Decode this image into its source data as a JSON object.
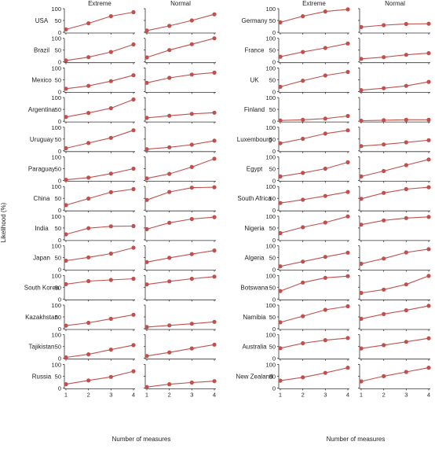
{
  "chart_data": {
    "type": "line",
    "ylabel": "Likelihood (%)",
    "xlabel": "Number of measures",
    "x": [
      1,
      2,
      3,
      4
    ],
    "ylim": [
      0,
      100
    ],
    "yticks": [
      0,
      50,
      100
    ],
    "xticks": [
      1,
      2,
      3,
      4
    ],
    "column_headers": [
      "Extreme",
      "Normal"
    ],
    "line_color": "#c0504d",
    "panels": [
      {
        "country": "USA",
        "extreme": [
          12,
          38,
          68,
          85
        ],
        "normal": [
          7,
          27,
          50,
          76
        ]
      },
      {
        "country": "Brazil",
        "extreme": [
          6,
          20,
          42,
          74
        ],
        "normal": [
          19,
          50,
          75,
          100
        ]
      },
      {
        "country": "Mexico",
        "extreme": [
          12,
          24,
          44,
          69
        ],
        "normal": [
          37,
          58,
          72,
          80
        ]
      },
      {
        "country": "Argentina",
        "extreme": [
          18,
          35,
          55,
          92
        ],
        "normal": [
          14,
          23,
          31,
          36
        ]
      },
      {
        "country": "Uruguay",
        "extreme": [
          11,
          33,
          55,
          87
        ],
        "normal": [
          7,
          15,
          26,
          43
        ]
      },
      {
        "country": "Paraguay",
        "extreme": [
          3,
          12,
          29,
          50
        ],
        "normal": [
          9,
          28,
          57,
          92
        ]
      },
      {
        "country": "China",
        "extreme": [
          21,
          49,
          76,
          89
        ],
        "normal": [
          43,
          77,
          95,
          97
        ]
      },
      {
        "country": "India",
        "extreme": [
          23,
          49,
          57,
          58
        ],
        "normal": [
          45,
          72,
          88,
          96
        ]
      },
      {
        "country": "Japan",
        "extreme": [
          37,
          51,
          67,
          92
        ],
        "normal": [
          31,
          49,
          65,
          80
        ]
      },
      {
        "country": "South Korea",
        "extreme": [
          63,
          76,
          81,
          86
        ],
        "normal": [
          62,
          75,
          86,
          95
        ]
      },
      {
        "country": "Kazakhstan",
        "extreme": [
          13,
          25,
          42,
          59
        ],
        "normal": [
          7,
          14,
          21,
          29
        ]
      },
      {
        "country": "Tajikistan",
        "extreme": [
          4,
          17,
          37,
          56
        ],
        "normal": [
          10,
          25,
          42,
          58
        ]
      },
      {
        "country": "Russia",
        "extreme": [
          16,
          32,
          47,
          71
        ],
        "normal": [
          4,
          16,
          23,
          29
        ]
      },
      {
        "country": "Germany",
        "extreme": [
          42,
          68,
          88,
          97
        ],
        "normal": [
          22,
          30,
          35,
          36
        ]
      },
      {
        "country": "France",
        "extreme": [
          22,
          42,
          59,
          78
        ],
        "normal": [
          13,
          20,
          30,
          37
        ]
      },
      {
        "country": "UK",
        "extreme": [
          20,
          46,
          68,
          83
        ],
        "normal": [
          6,
          14,
          24,
          41
        ]
      },
      {
        "country": "Finland",
        "extreme": [
          3,
          6,
          11,
          22
        ],
        "normal": [
          2,
          4,
          6,
          6
        ]
      },
      {
        "country": "Luxembourg",
        "extreme": [
          32,
          51,
          73,
          87
        ],
        "normal": [
          20,
          27,
          36,
          45
        ]
      },
      {
        "country": "Egypt",
        "extreme": [
          17,
          32,
          50,
          77
        ],
        "normal": [
          17,
          40,
          65,
          89
        ]
      },
      {
        "country": "South Africa",
        "extreme": [
          30,
          44,
          60,
          77
        ],
        "normal": [
          48,
          73,
          89,
          97
        ]
      },
      {
        "country": "Nigeria",
        "extreme": [
          28,
          53,
          73,
          99
        ],
        "normal": [
          64,
          82,
          92,
          97
        ]
      },
      {
        "country": "Algeria",
        "extreme": [
          13,
          33,
          53,
          71
        ],
        "normal": [
          24,
          46,
          72,
          86
        ]
      },
      {
        "country": "Botswana",
        "extreme": [
          34,
          70,
          90,
          97
        ],
        "normal": [
          26,
          40,
          62,
          98
        ]
      },
      {
        "country": "Namibia",
        "extreme": [
          27,
          53,
          80,
          95
        ],
        "normal": [
          42,
          62,
          78,
          97
        ]
      },
      {
        "country": "Australia",
        "extreme": [
          43,
          64,
          77,
          86
        ],
        "normal": [
          42,
          56,
          70,
          85
        ]
      },
      {
        "country": "New Zealand",
        "extreme": [
          31,
          45,
          64,
          86
        ],
        "normal": [
          28,
          50,
          68,
          86
        ]
      }
    ]
  }
}
